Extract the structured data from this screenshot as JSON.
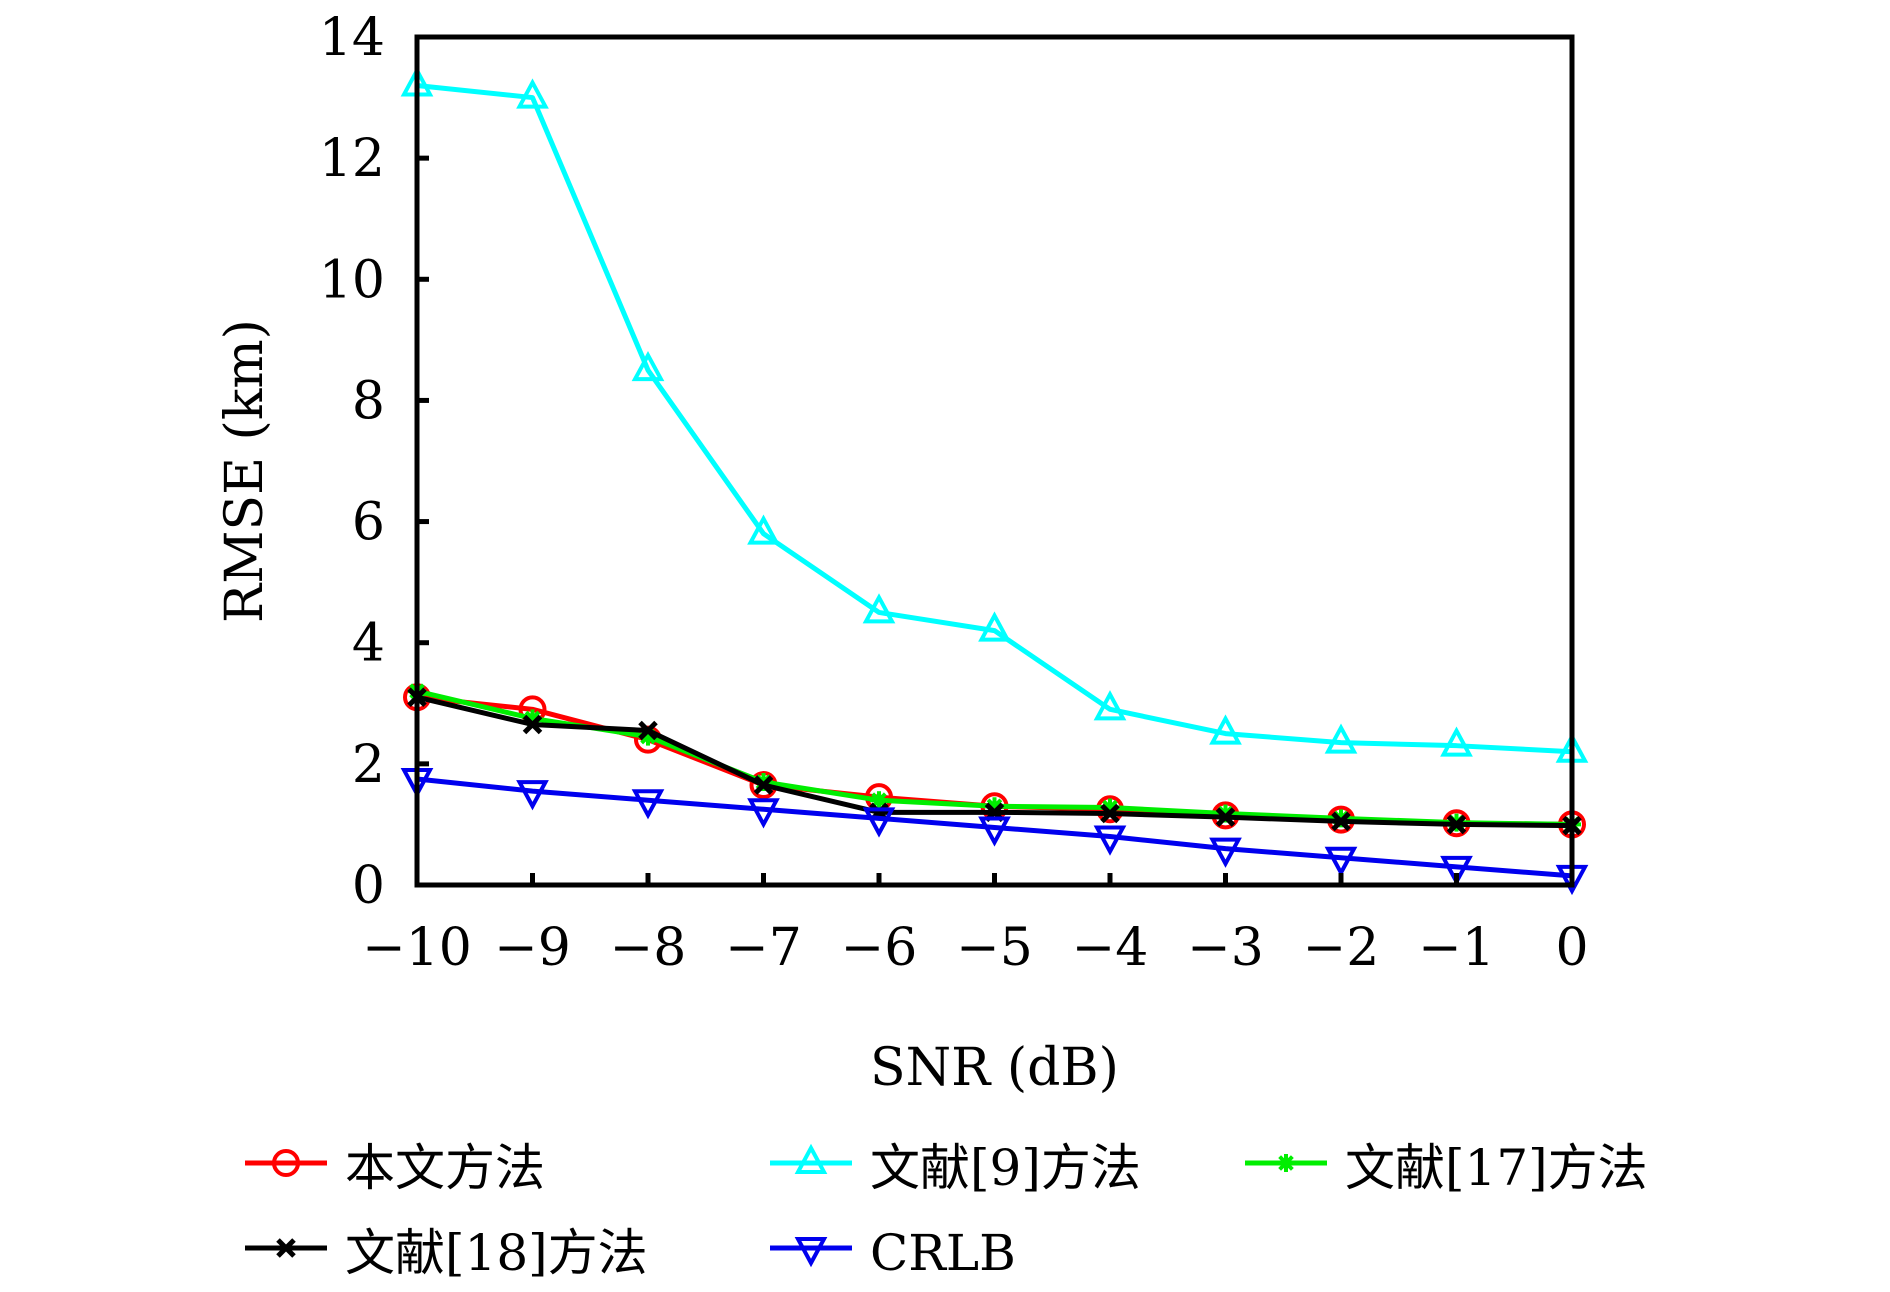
{
  "chart_data": {
    "type": "line",
    "title": "",
    "xlabel": "SNR (dB)",
    "ylabel": "RMSE (km)",
    "xlim": [
      -10,
      0
    ],
    "ylim": [
      0,
      14
    ],
    "grid": false,
    "x": [
      -10,
      -9,
      -8,
      -7,
      -6,
      -5,
      -4,
      -3,
      -2,
      -1,
      0
    ],
    "xtick_labels": [
      "−10",
      "−9",
      "−8",
      "−7",
      "−6",
      "−5",
      "−4",
      "−3",
      "−2",
      "−1",
      "0"
    ],
    "yticks": [
      0,
      2,
      4,
      6,
      8,
      10,
      12,
      14
    ],
    "ytick_labels": [
      "0",
      "2",
      "4",
      "6",
      "8",
      "10",
      "12",
      "14"
    ],
    "legend_position": "bottom",
    "series": [
      {
        "name": "本文方法",
        "color": "#ff0000",
        "marker": "circle",
        "values": [
          3.1,
          2.9,
          2.4,
          1.65,
          1.45,
          1.3,
          1.25,
          1.15,
          1.08,
          1.02,
          1.0
        ]
      },
      {
        "name": "文献[9]方法",
        "color": "#00ffff",
        "marker": "triangle-up",
        "values": [
          13.2,
          13.0,
          8.5,
          5.8,
          4.5,
          4.2,
          2.9,
          2.5,
          2.35,
          2.3,
          2.2
        ]
      },
      {
        "name": "文献[17]方法",
        "color": "#00ee00",
        "marker": "asterisk",
        "values": [
          3.2,
          2.75,
          2.45,
          1.7,
          1.4,
          1.3,
          1.28,
          1.18,
          1.1,
          1.03,
          1.0
        ]
      },
      {
        "name": "文献[18]方法",
        "color": "#000000",
        "marker": "x",
        "values": [
          3.1,
          2.65,
          2.55,
          1.65,
          1.2,
          1.2,
          1.18,
          1.12,
          1.05,
          1.0,
          0.98
        ]
      },
      {
        "name": "CRLB",
        "color": "#0000ee",
        "marker": "triangle-down",
        "values": [
          1.75,
          1.55,
          1.4,
          1.25,
          1.1,
          0.95,
          0.8,
          0.6,
          0.45,
          0.3,
          0.15
        ]
      }
    ]
  }
}
